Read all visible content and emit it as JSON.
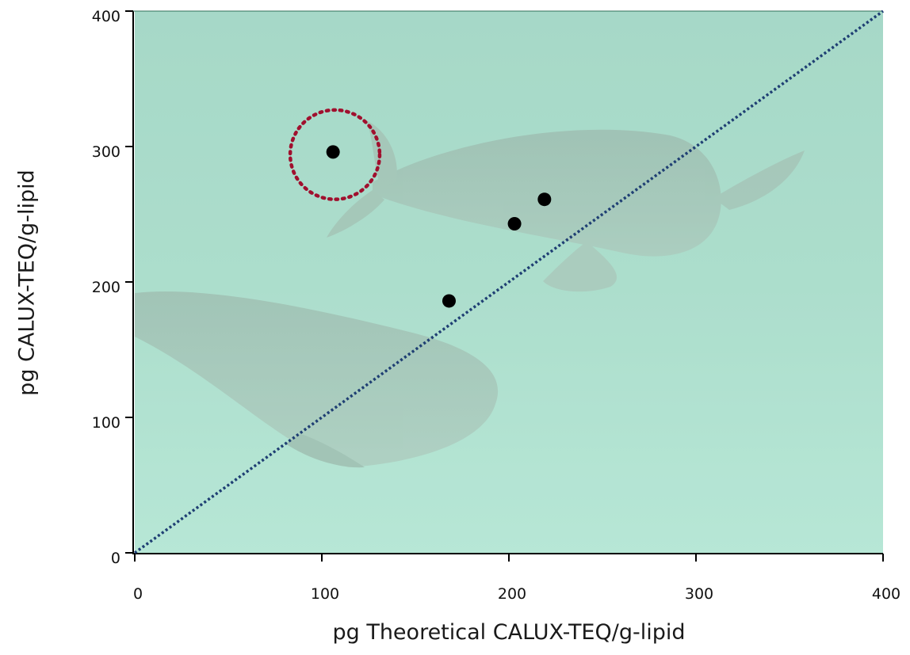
{
  "chart_data": {
    "type": "scatter",
    "title": "",
    "xlabel": "pg Theoretical CALUX-TEQ/g-lipid",
    "ylabel": "pg CALUX-TEQ/g-lipid",
    "xlim": [
      0,
      400
    ],
    "ylim": [
      0,
      400
    ],
    "x_ticks": [
      "0",
      "100",
      "200",
      "300",
      "400"
    ],
    "y_ticks": [
      "0",
      "100",
      "200",
      "300",
      "400"
    ],
    "grid": false,
    "legend": "none",
    "background": "underwater photo of two pilot whales behind plot area",
    "points": [
      {
        "x": 106,
        "y": 296
      },
      {
        "x": 168,
        "y": 186
      },
      {
        "x": 203,
        "y": 243
      },
      {
        "x": 219,
        "y": 261
      }
    ],
    "reference_line": {
      "from": [
        0,
        0
      ],
      "to": [
        400,
        400
      ],
      "style": "dotted",
      "color": "#1f3f73"
    },
    "highlight_circle": {
      "cx": 107,
      "cy": 294,
      "r_data_y": 33,
      "style": "dotted",
      "color": "#a0102e"
    },
    "colors": {
      "point": "#000000",
      "water": "#a9d9c9",
      "reference_line": "#1f3f73",
      "highlight": "#a0102e"
    }
  }
}
